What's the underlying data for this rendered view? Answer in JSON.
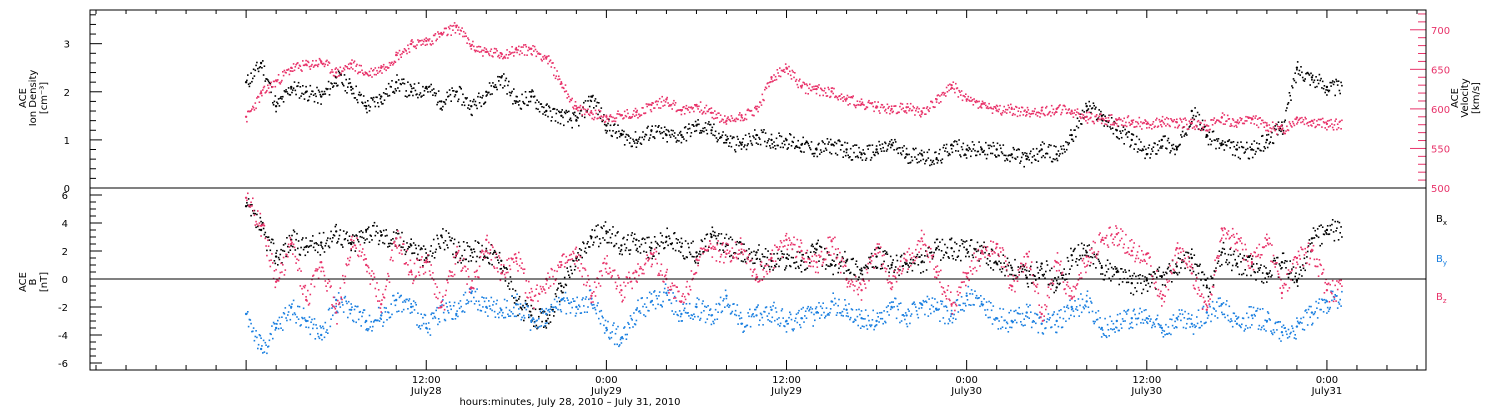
{
  "colors": {
    "density": "#000000",
    "velocity": "#e8336a",
    "bx": "#000000",
    "by": "#1a7fe0",
    "bz": "#e8336a",
    "axis": "#000000"
  },
  "chart_data": [
    {
      "type": "scatter",
      "ylabel_lines": [
        "ACE",
        "Ion Density"
      ],
      "yunit": "[cm⁻³]",
      "ylim": [
        0,
        3.7
      ],
      "yticks": [
        0,
        1,
        2,
        3
      ],
      "y2label_lines": [
        "ACE",
        "Velocity"
      ],
      "y2unit": "[km/s]",
      "y2lim": [
        500,
        725
      ],
      "y2ticks": [
        500,
        550,
        600,
        650,
        700
      ],
      "series": [
        {
          "key": "density",
          "axis": "left",
          "x": [
            0,
            1,
            2,
            3,
            4,
            5,
            6,
            7,
            8,
            9,
            10,
            11,
            12,
            13,
            14,
            15,
            16,
            17,
            18,
            19,
            20,
            21,
            22,
            23,
            24,
            25,
            26,
            27,
            28,
            29,
            30,
            31,
            32,
            33,
            34,
            35,
            36,
            37,
            38,
            39,
            40,
            41,
            42,
            43,
            44,
            45,
            46,
            47,
            48,
            49,
            50,
            51,
            52,
            53,
            54,
            55,
            56,
            57,
            58,
            59,
            60,
            61,
            62,
            63,
            64,
            65,
            66,
            67,
            68,
            69,
            70,
            71,
            72
          ],
          "y": [
            2.2,
            2.6,
            1.7,
            2.1,
            2.0,
            1.9,
            2.3,
            2.1,
            1.7,
            1.9,
            2.2,
            2.0,
            2.1,
            1.8,
            2.0,
            1.7,
            2.0,
            2.3,
            1.8,
            1.9,
            1.6,
            1.5,
            1.4,
            1.9,
            1.3,
            1.1,
            1.0,
            1.2,
            1.1,
            1.1,
            1.3,
            1.2,
            1.0,
            0.9,
            1.1,
            1.0,
            1.0,
            0.9,
            0.8,
            0.9,
            0.8,
            0.7,
            0.8,
            0.9,
            0.7,
            0.7,
            0.6,
            0.9,
            0.8,
            0.8,
            0.8,
            0.7,
            0.6,
            0.8,
            0.7,
            1.1,
            1.7,
            1.5,
            1.2,
            1.0,
            0.7,
            1.0,
            0.8,
            1.6,
            1.1,
            0.9,
            0.8,
            0.8,
            1.0,
            1.3,
            2.5,
            2.3,
            2.1
          ]
        },
        {
          "key": "velocity",
          "axis": "right",
          "x": [
            0,
            1,
            2,
            3,
            4,
            5,
            6,
            7,
            8,
            9,
            10,
            11,
            12,
            13,
            14,
            15,
            16,
            17,
            18,
            19,
            20,
            21,
            22,
            23,
            24,
            25,
            26,
            27,
            28,
            29,
            30,
            31,
            32,
            33,
            34,
            35,
            36,
            37,
            38,
            39,
            40,
            41,
            42,
            43,
            44,
            45,
            46,
            47,
            48,
            49,
            50,
            51,
            52,
            53,
            54,
            55,
            56,
            57,
            58,
            59,
            60,
            61,
            62,
            63,
            64,
            65,
            66,
            67,
            68,
            69,
            70,
            71,
            72
          ],
          "y": [
            590,
            620,
            636,
            652,
            656,
            660,
            646,
            657,
            645,
            652,
            668,
            682,
            686,
            695,
            705,
            680,
            672,
            670,
            675,
            676,
            665,
            632,
            600,
            595,
            590,
            592,
            596,
            605,
            612,
            598,
            605,
            595,
            585,
            592,
            600,
            640,
            652,
            628,
            625,
            622,
            613,
            606,
            603,
            600,
            602,
            597,
            612,
            630,
            612,
            606,
            598,
            600,
            596,
            598,
            600,
            597,
            590,
            588,
            586,
            585,
            581,
            585,
            583,
            582,
            579,
            589,
            583,
            588,
            579,
            574,
            589,
            585,
            581
          ]
        }
      ]
    },
    {
      "type": "scatter",
      "ylabel_lines": [
        "ACE",
        "B"
      ],
      "yunit": "[nT]",
      "ylim": [
        -6.5,
        6.5
      ],
      "yticks": [
        -6,
        -4,
        -2,
        0,
        2,
        4,
        6
      ],
      "xticks": [
        {
          "x": 12,
          "time": "12:00",
          "date": "July28"
        },
        {
          "x": 24,
          "time": "0:00",
          "date": "July29"
        },
        {
          "x": 36,
          "time": "12:00",
          "date": "July29"
        },
        {
          "x": 48,
          "time": "0:00",
          "date": "July30"
        },
        {
          "x": 60,
          "time": "12:00",
          "date": "July30"
        },
        {
          "x": 72,
          "time": "0:00",
          "date": "July31"
        }
      ],
      "xlim": [
        -10.4,
        78.6
      ],
      "xlabel": "hours:minutes, July 28, 2010 – July 31, 2010",
      "legend": [
        {
          "key": "bx",
          "label": "B",
          "sub": "x"
        },
        {
          "key": "by",
          "label": "B",
          "sub": "y"
        },
        {
          "key": "bz",
          "label": "B",
          "sub": "z"
        }
      ],
      "legend_placement": "right",
      "series": [
        {
          "key": "bx",
          "axis": "left",
          "x": [
            0,
            1,
            2,
            3,
            4,
            5,
            6,
            7,
            8,
            9,
            10,
            11,
            12,
            13,
            14,
            15,
            16,
            17,
            18,
            19,
            20,
            21,
            22,
            23,
            24,
            25,
            26,
            27,
            28,
            29,
            30,
            31,
            32,
            33,
            34,
            35,
            36,
            37,
            38,
            39,
            40,
            41,
            42,
            43,
            44,
            45,
            46,
            47,
            48,
            49,
            50,
            51,
            52,
            53,
            54,
            55,
            56,
            57,
            58,
            59,
            60,
            61,
            62,
            63,
            64,
            65,
            66,
            67,
            68,
            69,
            70,
            71,
            72
          ],
          "y": [
            5.2,
            3.5,
            1.6,
            2.8,
            2.3,
            2.6,
            3.4,
            2.5,
            3.5,
            3.1,
            2.9,
            2.4,
            1.5,
            3.1,
            1.9,
            2.1,
            2.0,
            1.3,
            -1.8,
            -2.6,
            -3.0,
            -0.5,
            1.5,
            3.0,
            3.4,
            2.4,
            2.8,
            2.2,
            3.0,
            2.3,
            1.9,
            3.0,
            2.5,
            1.9,
            1.9,
            1.3,
            1.5,
            1.3,
            2.1,
            1.0,
            1.3,
            0.6,
            1.6,
            1.0,
            1.1,
            1.2,
            2.2,
            2.2,
            2.1,
            2.0,
            1.1,
            0.8,
            0.1,
            1.1,
            -0.6,
            1.7,
            1.9,
            0.8,
            0.5,
            -0.3,
            -0.1,
            0.2,
            0.9,
            1.5,
            -0.6,
            1.9,
            1.1,
            0.9,
            0.4,
            1.2,
            -0.1,
            2.9,
            3.5
          ]
        },
        {
          "key": "by",
          "axis": "left",
          "x": [
            0,
            1,
            2,
            3,
            4,
            5,
            6,
            7,
            8,
            9,
            10,
            11,
            12,
            13,
            14,
            15,
            16,
            17,
            18,
            19,
            20,
            21,
            22,
            23,
            24,
            25,
            26,
            27,
            28,
            29,
            30,
            31,
            32,
            33,
            34,
            35,
            36,
            37,
            38,
            39,
            40,
            41,
            42,
            43,
            44,
            45,
            46,
            47,
            48,
            49,
            50,
            51,
            52,
            53,
            54,
            55,
            56,
            57,
            58,
            59,
            60,
            61,
            62,
            63,
            64,
            65,
            66,
            67,
            68,
            69,
            70,
            71,
            72
          ],
          "y": [
            -2.5,
            -5.0,
            -3.5,
            -2.0,
            -3.0,
            -4.0,
            -1.5,
            -2.2,
            -3.0,
            -2.6,
            -1.5,
            -2.0,
            -3.5,
            -2.0,
            -2.5,
            -1.0,
            -2.0,
            -2.2,
            -1.8,
            -3.0,
            -2.5,
            -1.5,
            -2.0,
            -1.4,
            -3.5,
            -4.2,
            -2.2,
            -1.6,
            -1.0,
            -2.5,
            -2.0,
            -2.6,
            -1.2,
            -3.2,
            -2.6,
            -2.2,
            -3.0,
            -2.8,
            -2.4,
            -1.6,
            -2.2,
            -2.8,
            -3.0,
            -2.0,
            -2.6,
            -1.8,
            -2.2,
            -2.5,
            -1.2,
            -1.8,
            -2.8,
            -3.0,
            -2.4,
            -3.2,
            -3.0,
            -2.0,
            -1.6,
            -3.5,
            -3.0,
            -2.8,
            -2.8,
            -3.5,
            -2.8,
            -3.2,
            -2.4,
            -1.8,
            -3.2,
            -2.6,
            -3.0,
            -3.8,
            -3.4,
            -2.4,
            -1.6
          ]
        },
        {
          "key": "bz",
          "axis": "left",
          "x": [
            0,
            1,
            2,
            3,
            4,
            5,
            6,
            7,
            8,
            9,
            10,
            11,
            12,
            13,
            14,
            15,
            16,
            17,
            18,
            19,
            20,
            21,
            22,
            23,
            24,
            25,
            26,
            27,
            28,
            29,
            30,
            31,
            32,
            33,
            34,
            35,
            36,
            37,
            38,
            39,
            40,
            41,
            42,
            43,
            44,
            45,
            46,
            47,
            48,
            49,
            50,
            51,
            52,
            53,
            54,
            55,
            56,
            57,
            58,
            59,
            60,
            61,
            62,
            63,
            64,
            65,
            66,
            67,
            68,
            69,
            70,
            71,
            72
          ],
          "y": [
            5.8,
            3.8,
            -0.2,
            2.5,
            -1.5,
            1.2,
            -2.4,
            2.8,
            1.0,
            -1.8,
            2.9,
            0.5,
            1.2,
            -2.0,
            1.8,
            -0.6,
            2.8,
            0.4,
            1.5,
            -1.5,
            0.0,
            1.0,
            1.6,
            -1.2,
            1.1,
            -0.8,
            0.5,
            1.8,
            0.0,
            -1.6,
            1.4,
            2.2,
            1.8,
            2.5,
            0.1,
            1.5,
            2.8,
            2.0,
            1.2,
            2.7,
            0.0,
            -0.8,
            2.2,
            -0.3,
            1.3,
            2.9,
            0.5,
            -1.8,
            0.4,
            2.0,
            2.5,
            -0.5,
            1.8,
            -2.5,
            1.2,
            -1.4,
            1.6,
            2.8,
            3.2,
            2.0,
            1.8,
            -1.4,
            2.2,
            0.4,
            -2.2,
            3.6,
            2.6,
            1.2,
            2.8,
            -1.0,
            1.5,
            2.0,
            -0.8
          ]
        }
      ]
    }
  ]
}
